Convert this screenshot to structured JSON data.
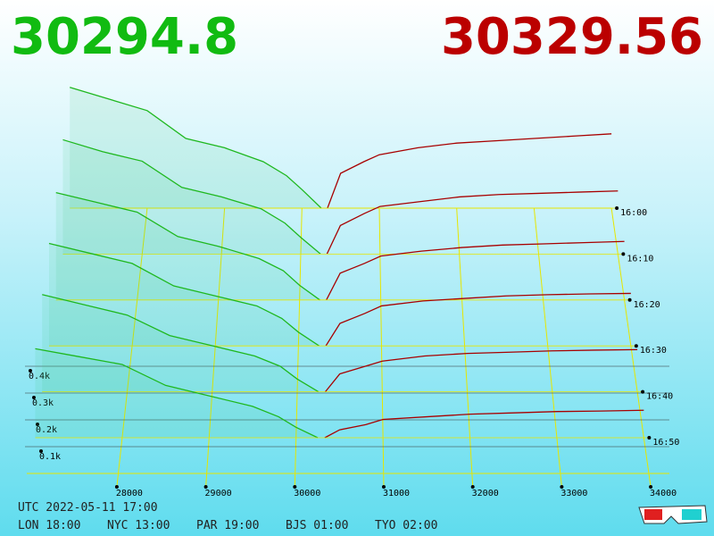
{
  "chart_data": {
    "type": "depth3d",
    "last_bid": "30294.8",
    "last_ask": "30329.56",
    "timestamp": "UTC 2022-05-11 17:00",
    "clocks": [
      "LON 18:00",
      "NYC 13:00",
      "PAR 19:00",
      "BJS 01:00",
      "TYO 02:00"
    ],
    "bid_color": "#1fb81f",
    "ask_color": "#a80000",
    "xlim": [
      27000,
      34200
    ],
    "xticks": [
      28000,
      29000,
      30000,
      31000,
      32000,
      33000,
      34000
    ],
    "yticks": [
      {
        "value": 100,
        "label": "0.1k"
      },
      {
        "value": 200,
        "label": "0.2k"
      },
      {
        "value": 300,
        "label": "0.3k"
      },
      {
        "value": 400,
        "label": "0.4k"
      }
    ],
    "bid_prices": [
      30250,
      30000,
      29800,
      29500,
      29000,
      28500,
      28000,
      27500,
      27000
    ],
    "ask_prices": [
      30330,
      30500,
      30800,
      31000,
      31500,
      32000,
      32500,
      33000,
      33500,
      34000
    ],
    "series": [
      {
        "name": "16:00",
        "bids": [
          0,
          80,
          140,
          200,
          260,
          300,
          420,
          470,
          520
        ],
        "asks": [
          0,
          150,
          200,
          230,
          260,
          280,
          290,
          300,
          310,
          320
        ]
      },
      {
        "name": "16:10",
        "bids": [
          0,
          70,
          130,
          190,
          240,
          280,
          390,
          430,
          480
        ],
        "asks": [
          0,
          120,
          170,
          200,
          220,
          240,
          250,
          255,
          260,
          265
        ]
      },
      {
        "name": "16:20",
        "bids": [
          0,
          60,
          120,
          170,
          220,
          260,
          360,
          400,
          440
        ],
        "asks": [
          0,
          110,
          150,
          180,
          200,
          215,
          225,
          230,
          235,
          240
        ]
      },
      {
        "name": "16:30",
        "bids": [
          0,
          55,
          110,
          160,
          200,
          240,
          330,
          370,
          410
        ],
        "asks": [
          0,
          90,
          130,
          160,
          180,
          190,
          200,
          205,
          208,
          210
        ]
      },
      {
        "name": "16:40",
        "bids": [
          0,
          50,
          100,
          140,
          180,
          220,
          300,
          340,
          380
        ],
        "asks": [
          0,
          70,
          100,
          120,
          140,
          150,
          155,
          160,
          163,
          165
        ]
      },
      {
        "name": "16:50",
        "bids": [
          0,
          40,
          80,
          120,
          160,
          200,
          280,
          310,
          340
        ],
        "asks": [
          0,
          30,
          50,
          70,
          80,
          90,
          95,
          100,
          102,
          105
        ]
      }
    ]
  }
}
